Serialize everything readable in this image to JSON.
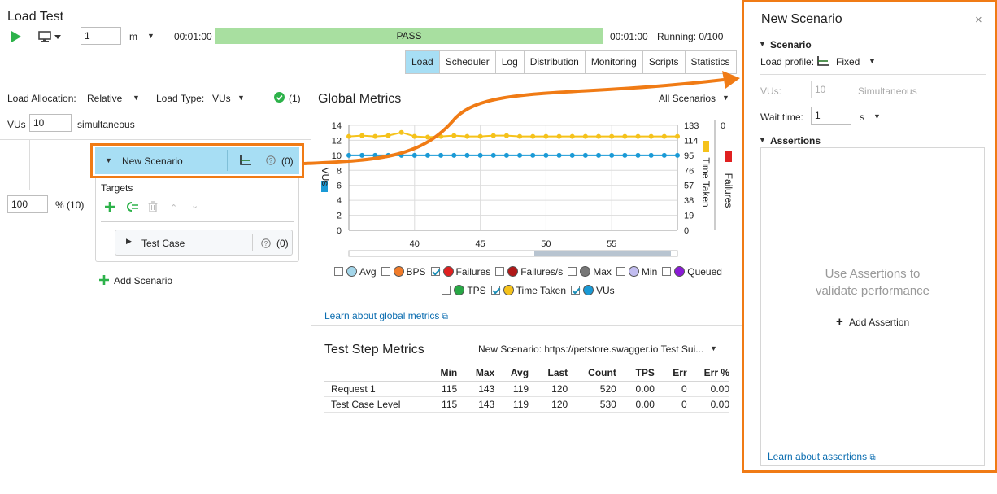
{
  "header": {
    "title": "Load Test",
    "duration_value": "1",
    "duration_unit": "m",
    "time_elapsed": "00:01:00",
    "status": "PASS",
    "time_total": "00:01:00",
    "running": "Running: 0/100"
  },
  "tabs": [
    {
      "label": "Load",
      "active": true
    },
    {
      "label": "Scheduler",
      "active": false
    },
    {
      "label": "Log",
      "active": false
    },
    {
      "label": "Distribution",
      "active": false
    },
    {
      "label": "Monitoring",
      "active": false
    },
    {
      "label": "Scripts",
      "active": false
    },
    {
      "label": "Statistics",
      "active": false
    }
  ],
  "load": {
    "allocation_label": "Load Allocation:",
    "allocation_value": "Relative",
    "type_label": "Load Type:",
    "type_value": "VUs",
    "status_count": "(1)",
    "vus_label": "VUs",
    "vus_value": "10",
    "vus_unit": "simultaneous",
    "percent_value": "100",
    "percent_label": "% (10)"
  },
  "scenario": {
    "name": "New Scenario",
    "count": "(0)",
    "targets_label": "Targets",
    "test_case": "Test Case",
    "test_case_count": "(0)",
    "add_label": "Add Scenario"
  },
  "global_metrics": {
    "title": "Global Metrics",
    "filter": "All Scenarios",
    "learn_link": "Learn about global metrics",
    "legend": [
      {
        "label": "Avg",
        "color": "#a4d6ea",
        "checked": false
      },
      {
        "label": "BPS",
        "color": "#f07b2a",
        "checked": false
      },
      {
        "label": "Failures",
        "color": "#e02020",
        "checked": true
      },
      {
        "label": "Failures/s",
        "color": "#b01818",
        "checked": false
      },
      {
        "label": "Max",
        "color": "#777777",
        "checked": false
      },
      {
        "label": "Min",
        "color": "#c2bdf0",
        "checked": false
      },
      {
        "label": "Queued",
        "color": "#8a1ad6",
        "checked": false
      },
      {
        "label": "TPS",
        "color": "#28a745",
        "checked": false
      },
      {
        "label": "Time Taken",
        "color": "#f5c21b",
        "checked": true
      },
      {
        "label": "VUs",
        "color": "#1a9ad6",
        "checked": true
      }
    ]
  },
  "chart_data": {
    "type": "line",
    "left_axis_label": "VUs",
    "left_ticks": [
      "14",
      "12",
      "10",
      "8",
      "6",
      "4",
      "2",
      "0"
    ],
    "right_axis_label": "Time Taken",
    "right_ticks": [
      "133",
      "114",
      "95",
      "76",
      "57",
      "38",
      "19",
      "0"
    ],
    "right2_axis_label": "Failures",
    "right2_ticks": [
      "0"
    ],
    "x_ticks": [
      "40",
      "45",
      "50",
      "55"
    ],
    "x_range": [
      35,
      60
    ],
    "ylim": [
      0,
      14
    ],
    "series": [
      {
        "name": "Time Taken",
        "color": "#f5c21b",
        "x": [
          35,
          36,
          37,
          38,
          39,
          40,
          41,
          42,
          43,
          44,
          45,
          46,
          47,
          48,
          49,
          50,
          51,
          52,
          53,
          54,
          55,
          56,
          57,
          58,
          59,
          60
        ],
        "values": [
          119,
          120,
          119,
          120,
          124,
          119,
          118,
          119,
          120,
          119,
          119,
          120,
          120,
          119,
          119,
          119,
          119,
          119,
          119,
          119,
          119,
          119,
          119,
          119,
          119,
          119
        ]
      },
      {
        "name": "VUs",
        "color": "#1a9ad6",
        "x": [
          35,
          36,
          37,
          38,
          39,
          40,
          41,
          42,
          43,
          44,
          45,
          46,
          47,
          48,
          49,
          50,
          51,
          52,
          53,
          54,
          55,
          56,
          57,
          58,
          59,
          60
        ],
        "values": [
          10,
          10,
          10,
          10,
          10,
          10,
          10,
          10,
          10,
          10,
          10,
          10,
          10,
          10,
          10,
          10,
          10,
          10,
          10,
          10,
          10,
          10,
          10,
          10,
          10,
          10
        ]
      }
    ]
  },
  "test_step_metrics": {
    "title": "Test Step Metrics",
    "filter": "New Scenario: https://petstore.swagger.io Test Sui...",
    "columns": [
      "",
      "Min",
      "Max",
      "Avg",
      "Last",
      "Count",
      "TPS",
      "Err",
      "Err %"
    ],
    "rows": [
      [
        "Request 1",
        "115",
        "143",
        "119",
        "120",
        "520",
        "0.00",
        "0",
        "0.00"
      ],
      [
        "Test Case Level",
        "115",
        "143",
        "119",
        "120",
        "530",
        "0.00",
        "0",
        "0.00"
      ]
    ]
  },
  "panel": {
    "title": "New Scenario",
    "scenario_section": "Scenario",
    "load_profile_label": "Load profile:",
    "load_profile_value": "Fixed",
    "vus_label": "VUs:",
    "vus_value": "10",
    "vus_unit": "Simultaneous",
    "wait_label": "Wait time:",
    "wait_value": "1",
    "wait_unit": "s",
    "assertions_section": "Assertions",
    "empty_line1": "Use Assertions to",
    "empty_line2": "validate performance",
    "add_assertion": "Add Assertion",
    "learn_link": "Learn about assertions"
  },
  "colors": {
    "accent_orange": "#f07b15",
    "selected_blue": "#a7def4",
    "pass_green": "#a8dfa0",
    "add_green": "#2db24a"
  }
}
